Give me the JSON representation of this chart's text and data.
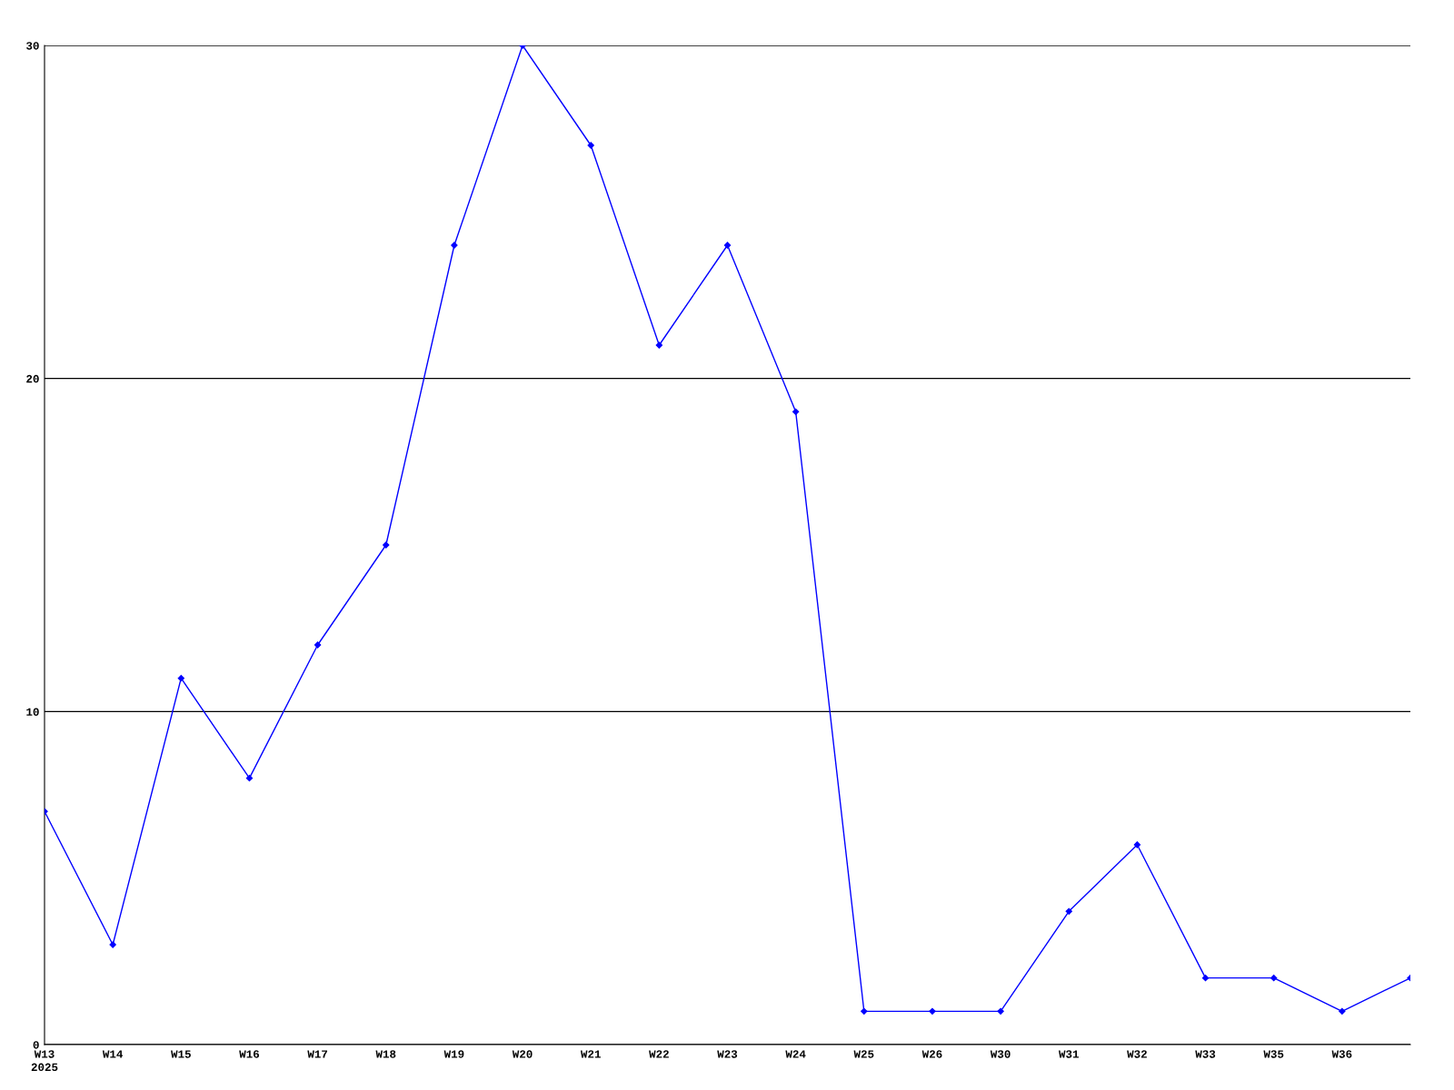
{
  "chart_data": {
    "type": "line",
    "categories": [
      "W13\n2025",
      "W14",
      "W15",
      "W16",
      "W17",
      "W18",
      "W19",
      "W20",
      "W21",
      "W22",
      "W23",
      "W24",
      "W25",
      "W26",
      "W30",
      "W31",
      "W32",
      "W33",
      "W35",
      "W36",
      null
    ],
    "series": [
      {
        "color": "#0000ff",
        "values": [
          7,
          3,
          11,
          8,
          12,
          15,
          24,
          30,
          27,
          21,
          24,
          19,
          1,
          1,
          1,
          4,
          6,
          2,
          2,
          1,
          2
        ]
      }
    ],
    "ylim": [
      0,
      30
    ],
    "yticks": [
      0,
      10,
      20,
      30
    ],
    "grid": "y",
    "marker": "diamond",
    "line_style": "solid"
  }
}
